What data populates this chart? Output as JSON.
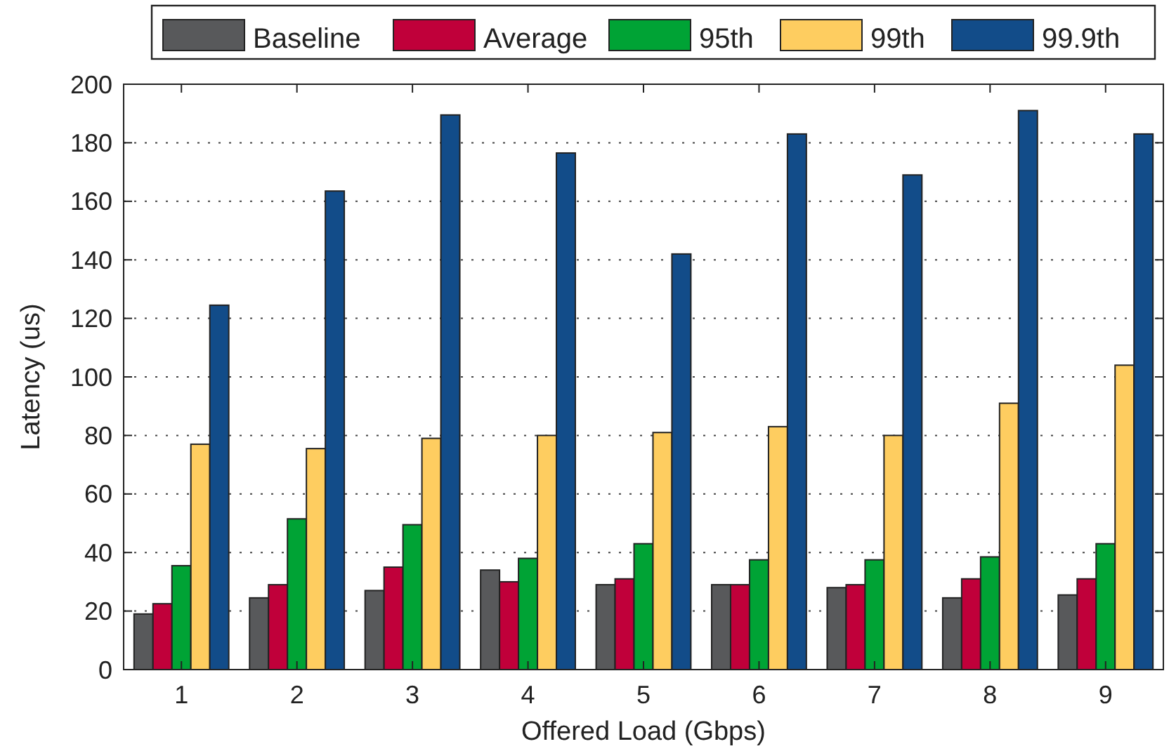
{
  "chart_data": {
    "type": "bar",
    "xlabel": "Offered Load (Gbps)",
    "ylabel": "Latency (us)",
    "categories": [
      "1",
      "2",
      "3",
      "4",
      "5",
      "6",
      "7",
      "8",
      "9"
    ],
    "series": [
      {
        "name": "Baseline",
        "color": "#58595b",
        "values": [
          19,
          24.5,
          27,
          34,
          29,
          29,
          28,
          24.5,
          25.5
        ]
      },
      {
        "name": "Average",
        "color": "#c0003a",
        "values": [
          22.5,
          29,
          35,
          30,
          31,
          29,
          29,
          31,
          31
        ]
      },
      {
        "name": "95th",
        "color": "#00a335",
        "values": [
          35.5,
          51.5,
          49.5,
          38,
          43,
          37.5,
          37.5,
          38.5,
          43
        ]
      },
      {
        "name": "99th",
        "color": "#fecd60",
        "values": [
          77,
          75.5,
          79,
          80,
          81,
          83,
          80,
          91,
          104
        ]
      },
      {
        "name": "99.9th",
        "color": "#124c89",
        "values": [
          124.5,
          163.5,
          189.5,
          176.5,
          142,
          183,
          169,
          191,
          183
        ]
      }
    ],
    "ylim": [
      0,
      200
    ],
    "yticks": [
      0,
      20,
      40,
      60,
      80,
      100,
      120,
      140,
      160,
      180,
      200
    ],
    "grid": "y",
    "legend": "top"
  }
}
